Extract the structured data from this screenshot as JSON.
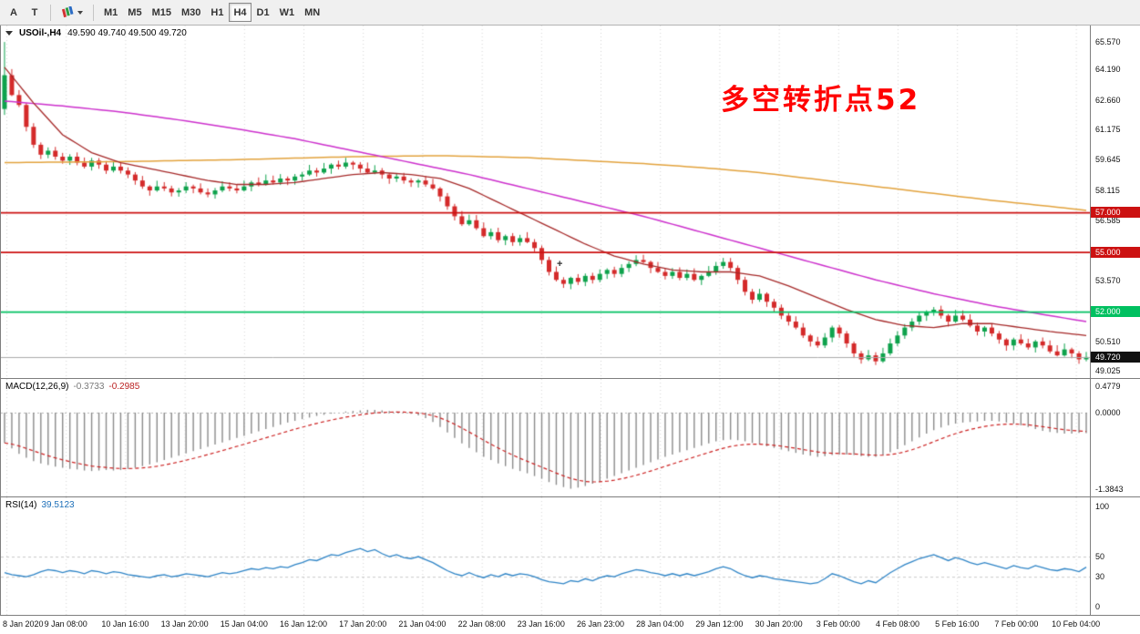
{
  "toolbar": {
    "tools": [
      {
        "id": "annotation-tool",
        "label": "A"
      },
      {
        "id": "text-cursor-tool",
        "label": "T"
      }
    ],
    "timeframes": [
      "M1",
      "M5",
      "M15",
      "M30",
      "H1",
      "H4",
      "D1",
      "W1",
      "MN"
    ],
    "active_timeframe": "H4"
  },
  "main_chart": {
    "title": {
      "symbol": "USOil-,H4",
      "ohlc": "49.590 49.740 49.500 49.720"
    },
    "annotation": {
      "text": "多空转折点52",
      "color": "#ff0000"
    },
    "axis_ticks": [
      [
        "65.570",
        65.57
      ],
      [
        "64.190",
        64.19
      ],
      [
        "62.660",
        62.66
      ],
      [
        "61.175",
        61.175
      ],
      [
        "59.645",
        59.645
      ],
      [
        "58.115",
        58.115
      ],
      [
        "56.585",
        56.585
      ],
      [
        "53.570",
        53.57
      ],
      [
        "50.510",
        50.51
      ],
      [
        "49.025",
        49.025
      ]
    ],
    "levels": [
      {
        "label": "57.000",
        "value": 57.0,
        "color": "#cc1111"
      },
      {
        "label": "55.000",
        "value": 55.0,
        "color": "#cc1111"
      },
      {
        "label": "52.000",
        "value": 52.0,
        "color": "#00c060"
      }
    ],
    "current_price": {
      "label": "49.720",
      "value": 49.72,
      "badge_color": "#111111"
    },
    "scale": {
      "min": 48.66,
      "max": 66.4
    }
  },
  "macd_panel": {
    "label": "MACD(12,26,9)",
    "value1": "-0.3733",
    "value2": "-0.2985",
    "axis_ticks": [
      [
        "0.4779",
        0.4779
      ],
      [
        "0.0000",
        0.0
      ],
      [
        "-1.3843",
        -1.3843
      ]
    ],
    "scale": {
      "min": -1.52,
      "max": 0.61
    }
  },
  "rsi_panel": {
    "label": "RSI(14)",
    "value": "39.5123",
    "axis_ticks": [
      [
        "100",
        100
      ],
      [
        "50",
        50
      ],
      [
        "30",
        30
      ],
      [
        "0",
        0
      ]
    ],
    "levels": [
      50,
      30
    ],
    "scale": {
      "min": -8,
      "max": 109
    }
  },
  "time_axis": {
    "labels": [
      "8 Jan 2020",
      "9 Jan 08:00",
      "10 Jan 16:00",
      "13 Jan 20:00",
      "15 Jan 04:00",
      "16 Jan 12:00",
      "17 Jan 20:00",
      "21 Jan 04:00",
      "22 Jan 08:00",
      "23 Jan 16:00",
      "26 Jan 23:00",
      "28 Jan 04:00",
      "29 Jan 12:00",
      "30 Jan 20:00",
      "3 Feb 00:00",
      "4 Feb 08:00",
      "5 Feb 16:00",
      "7 Feb 00:00",
      "10 Feb 04:00"
    ]
  },
  "colors": {
    "candle_up": "#0ea24c",
    "candle_down": "#d42a2a",
    "ma_fast": "#a52828",
    "ma_medium": "#cc2fcc",
    "ma_slow": "#e2a23c",
    "current_price_line": "#ababab",
    "macd_hist": "#8a8a8a",
    "macd_signal": "#cc2222",
    "rsi_line": "#2e84c6",
    "grid": "#d4d4d4"
  },
  "chart_data": {
    "type": "candlestick",
    "symbol": "USOil",
    "timeframe": "H4",
    "open_first": 62.2,
    "first_candle_high": 65.57,
    "first_candle_low": 61.9,
    "closes": [
      63.9,
      62.9,
      62.4,
      61.3,
      60.4,
      59.9,
      60.1,
      59.8,
      59.6,
      59.8,
      59.5,
      59.3,
      59.6,
      59.4,
      59.1,
      59.3,
      59.1,
      58.9,
      58.6,
      58.3,
      58.1,
      58.3,
      58.2,
      58.0,
      58.1,
      58.3,
      58.2,
      58.0,
      57.9,
      58.1,
      58.3,
      58.2,
      58.1,
      58.3,
      58.5,
      58.4,
      58.6,
      58.5,
      58.7,
      58.6,
      58.8,
      58.9,
      59.1,
      59.0,
      59.2,
      59.4,
      59.3,
      59.5,
      59.4,
      59.2,
      59.0,
      59.1,
      58.9,
      58.7,
      58.8,
      58.6,
      58.5,
      58.6,
      58.4,
      58.2,
      57.8,
      57.3,
      56.8,
      56.4,
      56.6,
      56.2,
      55.8,
      56.0,
      55.6,
      55.8,
      55.5,
      55.7,
      55.5,
      55.2,
      54.6,
      54.0,
      53.6,
      53.4,
      53.7,
      53.5,
      53.8,
      53.6,
      53.9,
      54.1,
      53.9,
      54.2,
      54.4,
      54.6,
      54.5,
      54.2,
      54.0,
      53.8,
      54.0,
      53.7,
      53.9,
      53.6,
      53.8,
      54.0,
      54.3,
      54.5,
      54.2,
      53.6,
      53.0,
      52.6,
      52.9,
      52.5,
      52.2,
      51.8,
      51.5,
      51.2,
      50.8,
      50.5,
      50.3,
      50.7,
      51.2,
      50.9,
      50.4,
      49.9,
      49.6,
      49.8,
      49.5,
      49.9,
      50.4,
      50.8,
      51.2,
      51.5,
      51.8,
      52.0,
      52.1,
      51.8,
      51.5,
      51.8,
      51.6,
      51.3,
      51.0,
      51.2,
      50.9,
      50.6,
      50.3,
      50.6,
      50.4,
      50.2,
      50.5,
      50.3,
      50.0,
      49.8,
      50.1,
      49.9,
      49.6,
      49.72
    ],
    "ma_fast_red": [
      [
        0,
        64.3
      ],
      [
        4,
        62.5
      ],
      [
        8,
        60.9
      ],
      [
        12,
        60.0
      ],
      [
        16,
        59.5
      ],
      [
        20,
        59.2
      ],
      [
        24,
        58.9
      ],
      [
        28,
        58.6
      ],
      [
        32,
        58.4
      ],
      [
        36,
        58.4
      ],
      [
        40,
        58.5
      ],
      [
        44,
        58.7
      ],
      [
        48,
        58.9
      ],
      [
        52,
        59.0
      ],
      [
        56,
        58.9
      ],
      [
        60,
        58.7
      ],
      [
        64,
        58.2
      ],
      [
        68,
        57.5
      ],
      [
        72,
        56.8
      ],
      [
        76,
        56.1
      ],
      [
        80,
        55.4
      ],
      [
        84,
        54.8
      ],
      [
        88,
        54.4
      ],
      [
        92,
        54.1
      ],
      [
        96,
        54.0
      ],
      [
        100,
        54.0
      ],
      [
        104,
        53.8
      ],
      [
        108,
        53.3
      ],
      [
        112,
        52.7
      ],
      [
        116,
        52.1
      ],
      [
        120,
        51.6
      ],
      [
        124,
        51.3
      ],
      [
        128,
        51.2
      ],
      [
        132,
        51.4
      ],
      [
        136,
        51.4
      ],
      [
        140,
        51.2
      ],
      [
        144,
        51.0
      ],
      [
        149,
        50.8
      ]
    ],
    "ma_medium_magenta": [
      [
        0,
        62.6
      ],
      [
        8,
        62.35
      ],
      [
        16,
        62.05
      ],
      [
        24,
        61.65
      ],
      [
        32,
        61.2
      ],
      [
        40,
        60.7
      ],
      [
        48,
        60.1
      ],
      [
        56,
        59.5
      ],
      [
        64,
        58.9
      ],
      [
        72,
        58.2
      ],
      [
        80,
        57.5
      ],
      [
        88,
        56.8
      ],
      [
        96,
        56.0
      ],
      [
        104,
        55.2
      ],
      [
        112,
        54.4
      ],
      [
        120,
        53.6
      ],
      [
        128,
        52.9
      ],
      [
        136,
        52.3
      ],
      [
        144,
        51.8
      ],
      [
        149,
        51.5
      ]
    ],
    "ma_slow_orange": [
      [
        0,
        59.5
      ],
      [
        16,
        59.55
      ],
      [
        32,
        59.65
      ],
      [
        48,
        59.8
      ],
      [
        60,
        59.85
      ],
      [
        72,
        59.75
      ],
      [
        80,
        59.6
      ],
      [
        88,
        59.45
      ],
      [
        96,
        59.25
      ],
      [
        104,
        59.0
      ],
      [
        112,
        58.65
      ],
      [
        120,
        58.3
      ],
      [
        128,
        57.95
      ],
      [
        136,
        57.6
      ],
      [
        144,
        57.3
      ],
      [
        149,
        57.1
      ]
    ],
    "macd_hist": [
      -0.55,
      -0.65,
      -0.75,
      -0.82,
      -0.88,
      -0.92,
      -0.95,
      -0.98,
      -1.0,
      -1.02,
      -1.03,
      -1.05,
      -1.06,
      -1.05,
      -1.04,
      -1.05,
      -1.04,
      -1.02,
      -1.0,
      -0.97,
      -0.94,
      -0.9,
      -0.86,
      -0.82,
      -0.78,
      -0.74,
      -0.7,
      -0.66,
      -0.62,
      -0.58,
      -0.54,
      -0.5,
      -0.46,
      -0.42,
      -0.38,
      -0.34,
      -0.3,
      -0.26,
      -0.22,
      -0.18,
      -0.15,
      -0.12,
      -0.09,
      -0.06,
      -0.04,
      -0.02,
      0.0,
      0.02,
      0.03,
      0.04,
      0.05,
      0.05,
      0.04,
      0.03,
      0.02,
      0.0,
      -0.02,
      -0.05,
      -0.1,
      -0.17,
      -0.26,
      -0.36,
      -0.46,
      -0.56,
      -0.64,
      -0.72,
      -0.8,
      -0.86,
      -0.92,
      -0.97,
      -1.02,
      -1.06,
      -1.1,
      -1.15,
      -1.2,
      -1.26,
      -1.31,
      -1.35,
      -1.38,
      -1.36,
      -1.33,
      -1.29,
      -1.25,
      -1.2,
      -1.15,
      -1.1,
      -1.05,
      -1.0,
      -0.95,
      -0.9,
      -0.85,
      -0.8,
      -0.76,
      -0.72,
      -0.68,
      -0.64,
      -0.6,
      -0.56,
      -0.52,
      -0.5,
      -0.49,
      -0.5,
      -0.52,
      -0.55,
      -0.58,
      -0.61,
      -0.64,
      -0.67,
      -0.7,
      -0.73,
      -0.76,
      -0.78,
      -0.8,
      -0.79,
      -0.77,
      -0.76,
      -0.76,
      -0.77,
      -0.79,
      -0.8,
      -0.8,
      -0.77,
      -0.72,
      -0.66,
      -0.59,
      -0.52,
      -0.45,
      -0.38,
      -0.32,
      -0.27,
      -0.23,
      -0.2,
      -0.18,
      -0.17,
      -0.16,
      -0.15,
      -0.15,
      -0.16,
      -0.18,
      -0.2,
      -0.23,
      -0.26,
      -0.3,
      -0.33,
      -0.35,
      -0.37,
      -0.38,
      -0.38,
      -0.37,
      -0.3733
    ],
    "rsi_values": [
      34,
      32,
      31,
      30,
      32,
      35,
      37,
      36,
      34,
      36,
      35,
      33,
      36,
      35,
      33,
      35,
      34,
      32,
      31,
      30,
      29,
      31,
      32,
      30,
      31,
      33,
      32,
      31,
      30,
      32,
      34,
      33,
      34,
      36,
      38,
      37,
      39,
      38,
      40,
      39,
      42,
      44,
      47,
      46,
      49,
      52,
      51,
      54,
      56,
      58,
      55,
      57,
      53,
      50,
      52,
      49,
      48,
      50,
      47,
      44,
      40,
      36,
      33,
      31,
      34,
      31,
      29,
      32,
      30,
      33,
      31,
      33,
      32,
      30,
      27,
      25,
      24,
      23,
      26,
      25,
      28,
      26,
      29,
      31,
      30,
      33,
      35,
      37,
      36,
      34,
      33,
      31,
      33,
      31,
      33,
      31,
      33,
      35,
      38,
      40,
      38,
      34,
      31,
      29,
      31,
      30,
      28,
      27,
      26,
      25,
      24,
      23,
      24,
      28,
      33,
      31,
      28,
      25,
      23,
      26,
      24,
      29,
      34,
      38,
      42,
      45,
      48,
      50,
      52,
      49,
      46,
      49,
      47,
      44,
      42,
      44,
      42,
      40,
      38,
      41,
      39,
      38,
      41,
      39,
      37,
      36,
      38,
      37,
      35,
      39.5
    ]
  }
}
